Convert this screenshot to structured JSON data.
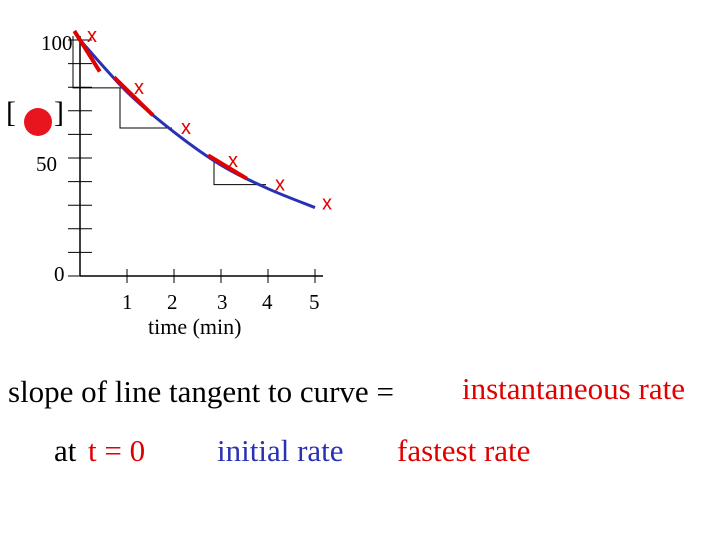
{
  "chart_data": {
    "type": "line",
    "x": [
      0,
      1,
      2,
      3,
      4,
      5
    ],
    "series": [
      {
        "values": [
          100,
          78,
          61,
          47,
          37,
          29
        ]
      }
    ],
    "y_ticks": [
      "100",
      "50",
      "0"
    ],
    "x_ticks": [
      "1",
      "2",
      "3",
      "4",
      "5"
    ],
    "xlabel": "time (min)",
    "ylabel_left": "[",
    "ylabel_right": "]",
    "point_marker": "x",
    "xlim": [
      0,
      5
    ],
    "ylim": [
      0,
      100
    ],
    "grid": false,
    "colors": {
      "curve": "#2a32b4",
      "tangent": "#e00000",
      "markers": "#e00000",
      "axis": "#000000"
    }
  },
  "caption": {
    "line1_prefix": "slope of line tangent to curve =",
    "line1_highlight": "instantaneous rate",
    "line2_at": "at",
    "line2_t": "t = 0",
    "line2_initial": "initial rate",
    "line2_fastest": "fastest rate"
  }
}
